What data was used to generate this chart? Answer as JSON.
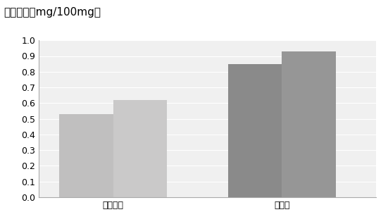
{
  "title": "三萜含量（mg/100mg）",
  "groups": [
    "阴性对照",
    "转基因"
  ],
  "bar_values": [
    [
      0.53,
      0.62
    ],
    [
      0.85,
      0.93
    ]
  ],
  "bar_colors_group1": [
    "#c0bfbf",
    "#cac9c9"
  ],
  "bar_colors_group2": [
    "#8a8a8a",
    "#969696"
  ],
  "ylim": [
    0,
    1.0
  ],
  "yticks": [
    0,
    0.1,
    0.2,
    0.3,
    0.4,
    0.5,
    0.6,
    0.7,
    0.8,
    0.9,
    1
  ],
  "title_fontsize": 11,
  "axis_fontsize": 9,
  "background_color": "#ffffff",
  "plot_bg_color": "#f0f0f0",
  "grid_color": "#ffffff",
  "bar_width": 0.16,
  "group_positions": [
    0.22,
    0.72
  ],
  "xlim": [
    0.0,
    1.0
  ]
}
